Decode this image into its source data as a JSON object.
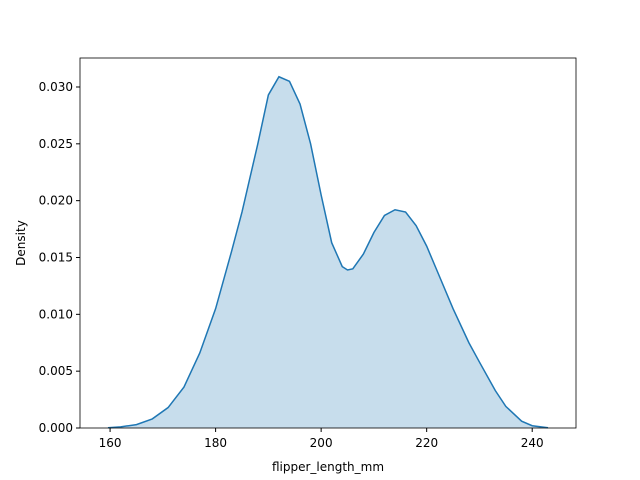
{
  "chart_data": {
    "type": "area",
    "xlabel": "flipper_length_mm",
    "ylabel": "Density",
    "x": [
      159.6,
      162,
      165,
      168,
      171,
      174,
      177,
      180,
      183,
      185,
      188,
      190,
      192,
      194,
      196,
      198,
      200,
      202,
      204,
      205,
      206,
      208,
      210,
      212,
      214,
      216,
      218,
      220,
      222,
      225,
      228,
      230,
      233,
      235,
      238,
      240,
      243
    ],
    "values": [
      2e-05,
      0.0001,
      0.0003,
      0.0008,
      0.0018,
      0.0036,
      0.0066,
      0.0105,
      0.0155,
      0.019,
      0.025,
      0.0293,
      0.0309,
      0.0305,
      0.0285,
      0.025,
      0.0205,
      0.0163,
      0.0142,
      0.0139,
      0.014,
      0.0153,
      0.0172,
      0.0187,
      0.0192,
      0.019,
      0.0178,
      0.016,
      0.0138,
      0.0105,
      0.0075,
      0.0058,
      0.0033,
      0.0019,
      0.0006,
      0.0002,
      2e-05
    ],
    "color": "#1f77b4",
    "xlim": [
      154.3,
      248.3
    ],
    "ylim": [
      0,
      0.03255
    ],
    "xticks": [
      160,
      180,
      200,
      220,
      240
    ],
    "yticks": [
      {
        "value": 0,
        "label": "0.000"
      },
      {
        "value": 0.005,
        "label": "0.005"
      },
      {
        "value": 0.01,
        "label": "0.010"
      },
      {
        "value": 0.015,
        "label": "0.015"
      },
      {
        "value": 0.02,
        "label": "0.020"
      },
      {
        "value": 0.025,
        "label": "0.025"
      },
      {
        "value": 0.03,
        "label": "0.030"
      }
    ]
  }
}
